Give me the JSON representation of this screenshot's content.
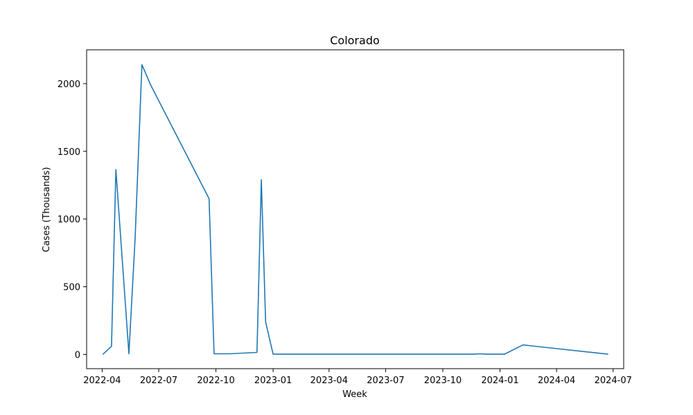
{
  "chart_data": {
    "type": "line",
    "title": "Colorado",
    "xlabel": "Week",
    "ylabel": "Cases (Thousands)",
    "x_tick_labels": [
      "2022-04",
      "2022-07",
      "2022-10",
      "2023-01",
      "2023-04",
      "2023-07",
      "2023-10",
      "2024-01",
      "2024-04",
      "2024-07"
    ],
    "x_ticks": [
      "2022-04-01",
      "2022-07-01",
      "2022-10-01",
      "2023-01-01",
      "2023-04-01",
      "2023-07-01",
      "2023-10-01",
      "2024-01-01",
      "2024-04-01",
      "2024-07-01"
    ],
    "y_ticks": [
      0,
      500,
      1000,
      1500,
      2000
    ],
    "xlim": [
      "2022-03-07",
      "2024-07-18"
    ],
    "ylim": [
      -105,
      2250
    ],
    "grid": false,
    "colors": {
      "line": "#1f77b4",
      "axes": "#000000"
    },
    "series": [
      {
        "x": [
          "2022-04-02",
          "2022-04-16",
          "2022-04-23",
          "2022-05-14",
          "2022-05-24",
          "2022-06-04",
          "2022-06-18",
          "2022-09-20",
          "2022-09-28",
          "2022-10-23",
          "2022-12-06",
          "2022-12-13",
          "2022-12-20",
          "2023-01-01",
          "2023-11-20",
          "2023-11-30",
          "2023-12-10",
          "2024-01-08",
          "2024-02-07",
          "2024-06-23"
        ],
        "y": [
          0,
          60,
          1365,
          5,
          860,
          2140,
          1990,
          1150,
          5,
          5,
          15,
          1290,
          240,
          2,
          2,
          5,
          2,
          2,
          70,
          2
        ]
      }
    ]
  }
}
